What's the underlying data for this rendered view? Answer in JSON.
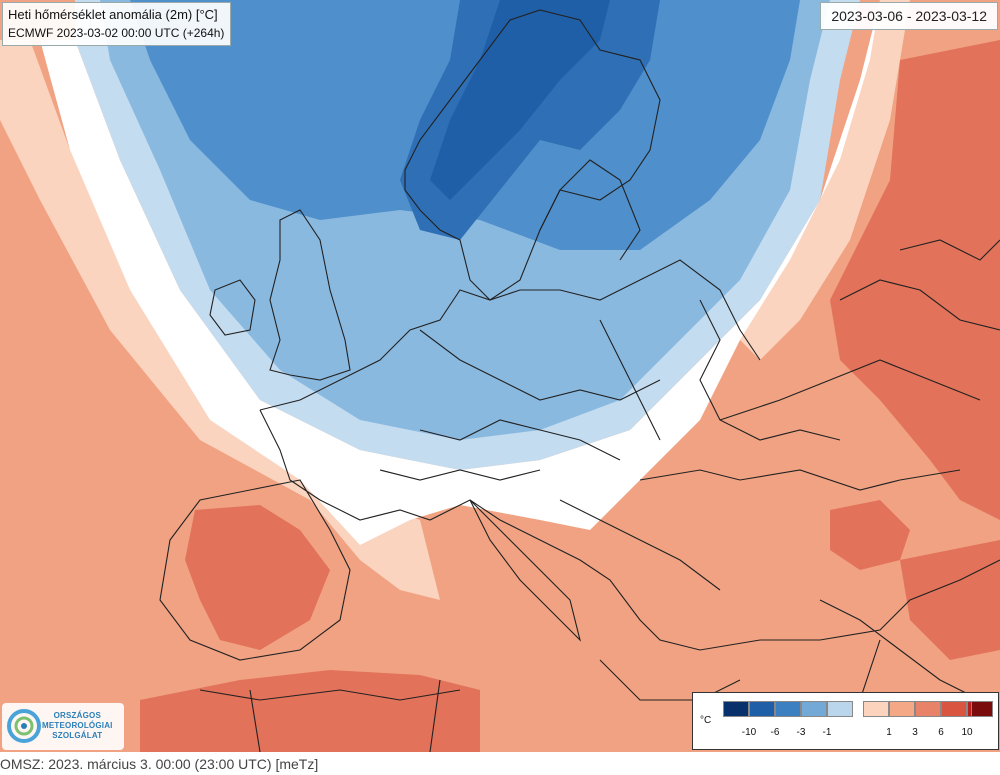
{
  "header": {
    "title": "Heti hőmérséklet anomália (2m) [°C]",
    "subtitle": "ECMWF 2023-03-02 00:00 UTC (+264h)",
    "date_range": "2023-03-06 - 2023-03-12"
  },
  "legend": {
    "unit": "°C",
    "labels": [
      "-10",
      "-6",
      "-3",
      "-1",
      "1",
      "3",
      "6",
      "10"
    ],
    "colors": [
      "#08306b",
      "#1f5fa8",
      "#3d80c2",
      "#73a9d6",
      "#b9d6ec",
      "#ffffff",
      "#fcd3bd",
      "#f4a885",
      "#e8836a",
      "#d9553f",
      "#b81f1f",
      "#7a0c0c"
    ]
  },
  "map_colors": {
    "anom_very_cold": "#2e6fb6",
    "anom_cold": "#4f8fcb",
    "anom_cool": "#8ab9e0",
    "anom_slight_cool": "#c4dcf0",
    "anom_neutral": "#ffffff",
    "anom_slight_warm": "#fbd4bf",
    "anom_warm": "#f0a282",
    "anom_hot": "#e27259",
    "borders": "#222222"
  },
  "logo": {
    "line1": "ORSZÁGOS",
    "line2": "METEOROLÓGIAI",
    "line3": "SZOLGÁLAT"
  },
  "footer": {
    "text": "OMSZ: 2023. március 3. 00:00 (23:00  UTC)  [meTz]"
  }
}
